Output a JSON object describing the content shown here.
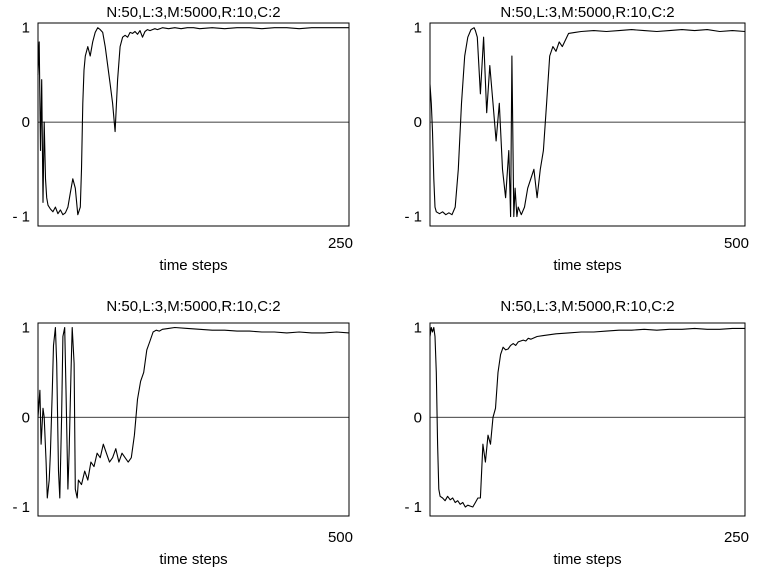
{
  "chart_data": [
    {
      "type": "line",
      "title": "N:50,L:3,M:5000,R:10,C:2",
      "xlabel": "time steps",
      "ylabel": "",
      "xlim": [
        0,
        250
      ],
      "ylim": [
        -1.1,
        1.05
      ],
      "yticks": [
        -1,
        0,
        1
      ],
      "ytick_labels": [
        "- 1",
        "0",
        "1"
      ],
      "xtick_labels": [
        "250"
      ],
      "series": [
        {
          "x": [
            0,
            1,
            2,
            3,
            4,
            5,
            6,
            7,
            8,
            10,
            12,
            14,
            16,
            18,
            20,
            22,
            24,
            26,
            28,
            30,
            32,
            34,
            35,
            36,
            37,
            38,
            40,
            42,
            44,
            46,
            48,
            50,
            52,
            54,
            56,
            58,
            60,
            62,
            64,
            66,
            68,
            70,
            72,
            74,
            76,
            78,
            80,
            82,
            84,
            86,
            88,
            90,
            92,
            94,
            96,
            98,
            100,
            105,
            110,
            115,
            120,
            125,
            130,
            140,
            150,
            160,
            170,
            180,
            190,
            200,
            210,
            220,
            230,
            240,
            250
          ],
          "y": [
            0.5,
            0.85,
            -0.3,
            0.45,
            -0.85,
            0.0,
            -0.6,
            -0.8,
            -0.88,
            -0.92,
            -0.95,
            -0.9,
            -0.97,
            -0.93,
            -0.98,
            -0.96,
            -0.9,
            -0.75,
            -0.6,
            -0.7,
            -0.98,
            -0.9,
            -0.5,
            0.2,
            0.55,
            0.7,
            0.8,
            0.7,
            0.85,
            0.95,
            1.0,
            0.98,
            0.95,
            0.8,
            0.6,
            0.4,
            0.2,
            -0.1,
            0.45,
            0.8,
            0.9,
            0.92,
            0.9,
            0.95,
            0.94,
            0.96,
            0.93,
            0.97,
            0.9,
            0.96,
            0.98,
            0.97,
            0.98,
            0.99,
            0.98,
            0.99,
            1.0,
            0.99,
            1.0,
            0.99,
            1.0,
            1.0,
            0.99,
            1.0,
            0.99,
            1.0,
            1.0,
            0.99,
            1.0,
            1.0,
            0.99,
            1.0,
            1.0,
            1.0,
            1.0
          ]
        }
      ]
    },
    {
      "type": "line",
      "title": "N:50,L:3,M:5000,R:10,C:2",
      "xlabel": "time steps",
      "ylabel": "",
      "xlim": [
        0,
        500
      ],
      "ylim": [
        -1.1,
        1.05
      ],
      "yticks": [
        -1,
        0,
        1
      ],
      "ytick_labels": [
        "- 1",
        "0",
        "1"
      ],
      "xtick_labels": [
        "500"
      ],
      "series": [
        {
          "x": [
            0,
            2,
            4,
            6,
            8,
            10,
            15,
            20,
            25,
            30,
            35,
            40,
            45,
            50,
            55,
            60,
            65,
            70,
            72,
            75,
            80,
            85,
            90,
            95,
            100,
            105,
            110,
            115,
            120,
            125,
            128,
            130,
            133,
            135,
            138,
            140,
            145,
            150,
            155,
            160,
            165,
            170,
            175,
            180,
            185,
            190,
            195,
            200,
            205,
            210,
            220,
            230,
            240,
            260,
            280,
            300,
            320,
            340,
            360,
            380,
            400,
            420,
            440,
            460,
            480,
            500
          ],
          "y": [
            0.4,
            0.2,
            -0.1,
            -0.6,
            -0.9,
            -0.95,
            -0.97,
            -0.95,
            -0.98,
            -0.96,
            -0.98,
            -0.9,
            -0.5,
            0.2,
            0.7,
            0.9,
            0.98,
            1.0,
            0.97,
            0.9,
            0.3,
            0.9,
            0.1,
            0.6,
            0.2,
            -0.2,
            0.2,
            -0.5,
            -0.8,
            -0.3,
            -1.0,
            0.7,
            -1.0,
            -0.7,
            -1.0,
            -0.9,
            -0.98,
            -0.9,
            -0.7,
            -0.6,
            -0.5,
            -0.8,
            -0.5,
            -0.3,
            0.2,
            0.7,
            0.8,
            0.75,
            0.85,
            0.8,
            0.94,
            0.95,
            0.96,
            0.97,
            0.96,
            0.97,
            0.98,
            0.97,
            0.96,
            0.97,
            0.98,
            0.97,
            0.98,
            0.96,
            0.97,
            0.96
          ]
        }
      ]
    },
    {
      "type": "line",
      "title": "N:50,L:3,M:5000,R:10,C:2",
      "xlabel": "time steps",
      "ylabel": "",
      "xlim": [
        0,
        500
      ],
      "ylim": [
        -1.1,
        1.05
      ],
      "yticks": [
        -1,
        0,
        1
      ],
      "ytick_labels": [
        "- 1",
        "0",
        "1"
      ],
      "xtick_labels": [
        "500"
      ],
      "series": [
        {
          "x": [
            0,
            3,
            5,
            8,
            10,
            13,
            15,
            18,
            20,
            23,
            25,
            28,
            30,
            33,
            35,
            38,
            40,
            43,
            45,
            48,
            50,
            53,
            55,
            58,
            60,
            63,
            65,
            70,
            75,
            80,
            85,
            90,
            95,
            100,
            105,
            110,
            115,
            120,
            125,
            130,
            135,
            140,
            145,
            150,
            155,
            160,
            165,
            170,
            175,
            180,
            185,
            190,
            195,
            200,
            210,
            220,
            240,
            260,
            280,
            300,
            320,
            340,
            360,
            380,
            400,
            420,
            440,
            460,
            480,
            500
          ],
          "y": [
            0.0,
            0.3,
            -0.3,
            0.1,
            0.0,
            -0.5,
            -0.9,
            -0.7,
            -0.4,
            0.3,
            0.8,
            1.0,
            0.6,
            -0.6,
            -0.9,
            0.0,
            0.9,
            1.0,
            0.3,
            -0.8,
            -0.4,
            0.5,
            1.0,
            0.6,
            -0.8,
            -0.9,
            -0.7,
            -0.75,
            -0.6,
            -0.7,
            -0.5,
            -0.55,
            -0.4,
            -0.45,
            -0.3,
            -0.4,
            -0.5,
            -0.45,
            -0.35,
            -0.5,
            -0.4,
            -0.45,
            -0.5,
            -0.45,
            -0.2,
            0.2,
            0.4,
            0.5,
            0.75,
            0.85,
            0.95,
            0.97,
            0.96,
            0.98,
            0.99,
            1.0,
            0.99,
            0.98,
            0.97,
            0.97,
            0.96,
            0.96,
            0.95,
            0.95,
            0.94,
            0.95,
            0.94,
            0.94,
            0.95,
            0.94
          ]
        }
      ]
    },
    {
      "type": "line",
      "title": "N:50,L:3,M:5000,R:10,C:2",
      "xlabel": "time steps",
      "ylabel": "",
      "xlim": [
        0,
        250
      ],
      "ylim": [
        -1.1,
        1.05
      ],
      "yticks": [
        -1,
        0,
        1
      ],
      "ytick_labels": [
        "- 1",
        "0",
        "1"
      ],
      "xtick_labels": [
        "250"
      ],
      "series": [
        {
          "x": [
            0,
            1,
            2,
            3,
            4,
            5,
            6,
            7,
            8,
            10,
            12,
            14,
            16,
            18,
            20,
            22,
            24,
            26,
            28,
            30,
            32,
            34,
            36,
            38,
            40,
            42,
            44,
            46,
            48,
            50,
            52,
            54,
            56,
            58,
            60,
            62,
            64,
            66,
            68,
            70,
            72,
            74,
            76,
            78,
            80,
            85,
            90,
            95,
            100,
            110,
            120,
            130,
            140,
            150,
            160,
            170,
            180,
            190,
            200,
            210,
            220,
            230,
            240,
            250
          ],
          "y": [
            0.9,
            1.0,
            0.95,
            1.0,
            0.9,
            0.5,
            -0.3,
            -0.8,
            -0.88,
            -0.9,
            -0.93,
            -0.88,
            -0.92,
            -0.9,
            -0.95,
            -0.93,
            -0.97,
            -0.95,
            -1.0,
            -0.98,
            -0.99,
            -1.0,
            -0.95,
            -0.9,
            -0.9,
            -0.3,
            -0.5,
            -0.2,
            -0.3,
            0.0,
            0.1,
            0.5,
            0.7,
            0.78,
            0.75,
            0.76,
            0.8,
            0.82,
            0.8,
            0.84,
            0.85,
            0.86,
            0.85,
            0.88,
            0.87,
            0.9,
            0.91,
            0.92,
            0.93,
            0.94,
            0.95,
            0.95,
            0.96,
            0.97,
            0.97,
            0.98,
            0.97,
            0.98,
            0.98,
            0.99,
            0.98,
            0.98,
            0.99,
            0.99
          ]
        }
      ]
    }
  ]
}
